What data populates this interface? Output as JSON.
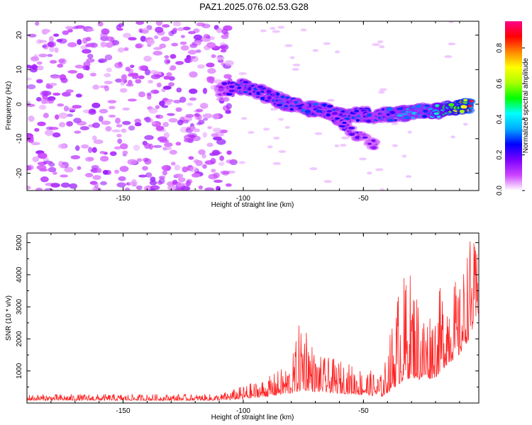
{
  "page": {
    "title": "PAZ1.2025.076.02.53.G28"
  },
  "chart_data": [
    {
      "type": "heatmap",
      "xlabel": "Height of straight line (km)",
      "ylabel": "Frequency (Hz)",
      "xlim": [
        -190,
        -2
      ],
      "ylim": [
        -25,
        24
      ],
      "x_ticks": [
        -150,
        -100,
        -50
      ],
      "y_ticks": [
        -20,
        -10,
        0,
        10,
        20
      ],
      "colorbar": {
        "label": "Normalized spectral amplitude",
        "range": [
          0.0,
          0.95
        ],
        "ticks": [
          0.0,
          0.2,
          0.4,
          0.6,
          0.8
        ],
        "tick_labels": [
          "0.0",
          "0.2",
          "0.4",
          "0.6",
          "0.8"
        ],
        "colors": [
          "#ffffff",
          "#cc44ff",
          "#7a00ff",
          "#0000ff",
          "#00aaff",
          "#00ffff",
          "#00ff00",
          "#aaff00",
          "#ffff00",
          "#ff8800",
          "#ff0000",
          "#ff0088"
        ]
      },
      "noise_region": {
        "x": [
          -190,
          -104
        ],
        "y": [
          -25,
          24
        ],
        "amplitude": 0.12
      },
      "signal_track": [
        {
          "x": -110,
          "y": 4,
          "amp": 0.18
        },
        {
          "x": -105,
          "y": 4.5,
          "amp": 0.25
        },
        {
          "x": -100,
          "y": 5,
          "amp": 0.3
        },
        {
          "x": -95,
          "y": 4,
          "amp": 0.3
        },
        {
          "x": -90,
          "y": 2.5,
          "amp": 0.28
        },
        {
          "x": -85,
          "y": 1,
          "amp": 0.32
        },
        {
          "x": -80,
          "y": 0,
          "amp": 0.3
        },
        {
          "x": -75,
          "y": -1,
          "amp": 0.32
        },
        {
          "x": -70,
          "y": -1.5,
          "amp": 0.3
        },
        {
          "x": -65,
          "y": -2,
          "amp": 0.28
        },
        {
          "x": -60,
          "y": -3,
          "amp": 0.3
        },
        {
          "x": -55,
          "y": -3.5,
          "amp": 0.3
        },
        {
          "x": -50,
          "y": -3,
          "amp": 0.3
        },
        {
          "x": -45,
          "y": -3.5,
          "amp": 0.28
        },
        {
          "x": -40,
          "y": -3,
          "amp": 0.3
        },
        {
          "x": -35,
          "y": -3,
          "amp": 0.35
        },
        {
          "x": -30,
          "y": -2.5,
          "amp": 0.4
        },
        {
          "x": -25,
          "y": -2,
          "amp": 0.35
        },
        {
          "x": -20,
          "y": -2,
          "amp": 0.5
        },
        {
          "x": -15,
          "y": -1.5,
          "amp": 0.55
        },
        {
          "x": -10,
          "y": -1,
          "amp": 0.7
        },
        {
          "x": -5,
          "y": 0,
          "amp": 0.92
        }
      ],
      "secondary_track": [
        {
          "x": -65,
          "y": -2,
          "amp": 0.25
        },
        {
          "x": -60,
          "y": -5,
          "amp": 0.25
        },
        {
          "x": -55,
          "y": -8,
          "amp": 0.22
        },
        {
          "x": -50,
          "y": -10,
          "amp": 0.2
        },
        {
          "x": -45,
          "y": -12,
          "amp": 0.18
        }
      ]
    },
    {
      "type": "line",
      "xlabel": "Height of straight line (km)",
      "ylabel": "SNR (10 * v/v)",
      "xlim": [
        -190,
        -2
      ],
      "ylim": [
        0,
        5300
      ],
      "x_ticks": [
        -150,
        -100,
        -50
      ],
      "y_ticks": [
        1000,
        2000,
        3000,
        4000,
        5000
      ],
      "color": "#ff2222",
      "envelope": [
        {
          "x": -190,
          "base": 80,
          "peak": 280
        },
        {
          "x": -110,
          "base": 80,
          "peak": 280
        },
        {
          "x": -100,
          "base": 120,
          "peak": 550
        },
        {
          "x": -90,
          "base": 200,
          "peak": 800
        },
        {
          "x": -80,
          "base": 300,
          "peak": 1300
        },
        {
          "x": -75,
          "base": 400,
          "peak": 3150
        },
        {
          "x": -70,
          "base": 350,
          "peak": 1500
        },
        {
          "x": -60,
          "base": 300,
          "peak": 1350
        },
        {
          "x": -50,
          "base": 250,
          "peak": 1100
        },
        {
          "x": -42,
          "base": 200,
          "peak": 900
        },
        {
          "x": -35,
          "base": 600,
          "peak": 3900
        },
        {
          "x": -30,
          "base": 800,
          "peak": 4200
        },
        {
          "x": -25,
          "base": 700,
          "peak": 3000
        },
        {
          "x": -20,
          "base": 800,
          "peak": 3200
        },
        {
          "x": -15,
          "base": 1200,
          "peak": 4300
        },
        {
          "x": -10,
          "base": 1500,
          "peak": 3600
        },
        {
          "x": -6,
          "base": 2000,
          "peak": 5250
        },
        {
          "x": -2,
          "base": 2800,
          "peak": 4800
        }
      ]
    }
  ]
}
